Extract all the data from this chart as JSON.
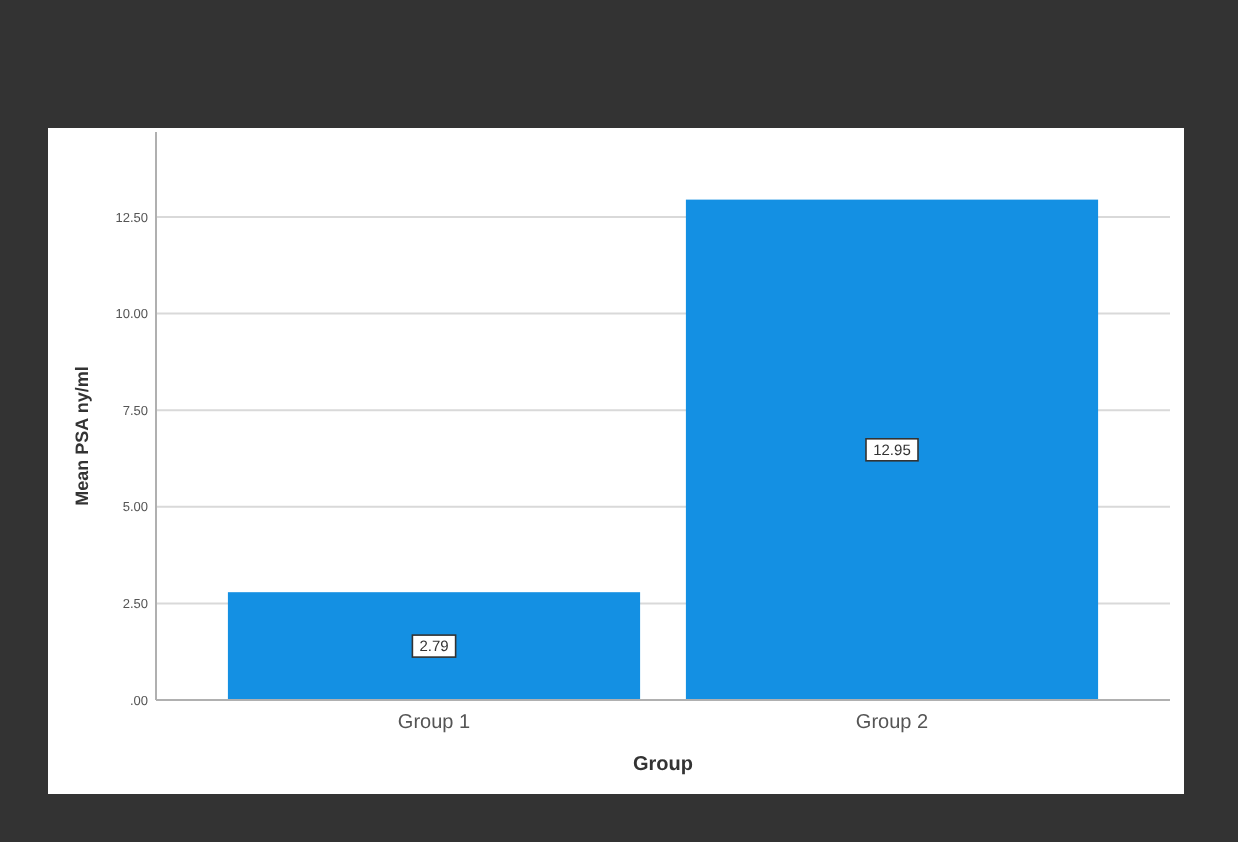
{
  "chart_data": {
    "type": "bar",
    "xlabel": "Group",
    "ylabel": "Mean PSA ny/ml",
    "categories": [
      "Group 1",
      "Group 2"
    ],
    "values": [
      2.79,
      12.95
    ],
    "color": "#1490e3",
    "ylim": [
      0,
      14.7
    ],
    "yticks": [
      {
        "value": 0,
        "label": ".00"
      },
      {
        "value": 2.5,
        "label": "2.50"
      },
      {
        "value": 5,
        "label": "5.00"
      },
      {
        "value": 7.5,
        "label": "7.50"
      },
      {
        "value": 10,
        "label": "10.00"
      },
      {
        "value": 12.5,
        "label": "12.50"
      }
    ],
    "grid": "y",
    "data_labels": true
  }
}
